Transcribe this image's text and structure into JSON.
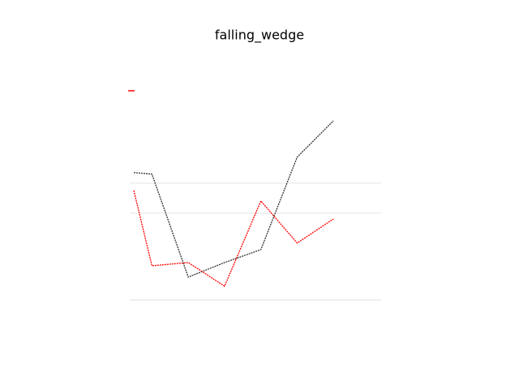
{
  "chart_data": {
    "type": "line",
    "title": "falling_wedge",
    "x": [
      -0.5,
      0,
      1,
      2,
      3,
      4,
      5
    ],
    "xlim": [
      -0.5,
      6
    ],
    "ylim": [
      0,
      100
    ],
    "series": [
      {
        "color": "#333333",
        "values": [
          70.8,
          69.9,
          11.9,
          20.1,
          27.4,
          79.5,
          100
        ]
      },
      {
        "color": "#ff0000",
        "values": [
          60.7,
          18.3,
          20.1,
          6.8,
          54.8,
          31.1,
          44.7
        ]
      }
    ]
  }
}
